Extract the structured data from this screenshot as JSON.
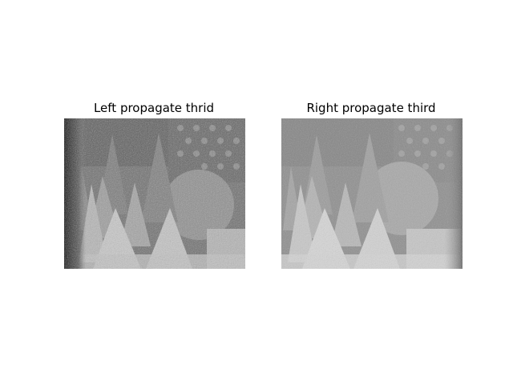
{
  "figure": {
    "panels": [
      {
        "title": "Left propagate thrid"
      },
      {
        "title": "Right propagate third"
      }
    ]
  }
}
